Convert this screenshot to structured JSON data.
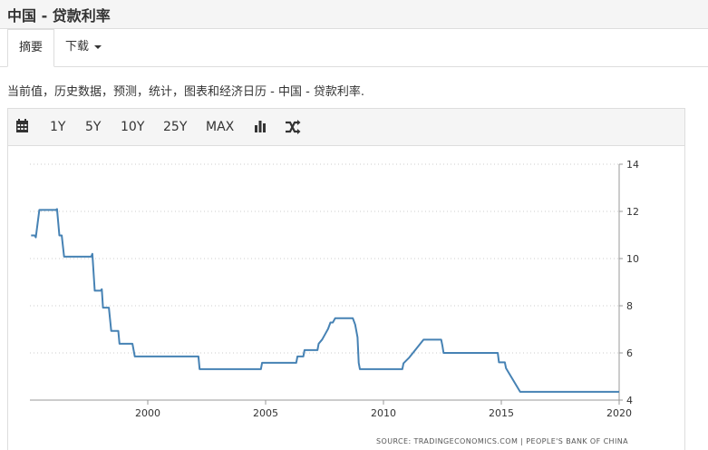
{
  "page": {
    "title": "中国 - 贷款利率"
  },
  "tabs": {
    "summary": "摘要",
    "download": "下载"
  },
  "description": "当前值，历史数据，预测，统计，图表和经济日历 - 中国 - 贷款利率.",
  "toolbar": {
    "calendar_icon": "calendar-icon",
    "ranges": [
      "1Y",
      "5Y",
      "10Y",
      "25Y",
      "MAX"
    ],
    "bar_chart_icon": "bar-chart-icon",
    "shuffle_icon": "shuffle-icon"
  },
  "colors": {
    "line": "#4682b4",
    "grid": "#cccccc",
    "toolbar_bg": "#f5f5f5"
  },
  "chart_data": {
    "type": "line",
    "x_axis": {
      "ticks": [
        "2000",
        "2005",
        "2010",
        "2015",
        "2020"
      ],
      "range": [
        1995.0,
        2020.0
      ]
    },
    "y_axis": {
      "ticks": [
        "4",
        "6",
        "8",
        "10",
        "12",
        "14"
      ],
      "range": [
        4,
        14
      ],
      "position": "right"
    },
    "grid": "horizontal-dotted",
    "source": "SOURCE: TRADINGECONOMICS.COM  |  PEOPLE'S BANK OF CHINA",
    "series": [
      {
        "points": [
          [
            1995.05,
            10.98
          ],
          [
            1995.2,
            10.98
          ],
          [
            1995.25,
            10.9
          ],
          [
            1995.4,
            12.06
          ],
          [
            1996.1,
            12.06
          ],
          [
            1996.15,
            12.1
          ],
          [
            1996.25,
            10.98
          ],
          [
            1996.35,
            10.98
          ],
          [
            1996.45,
            10.08
          ],
          [
            1997.6,
            10.08
          ],
          [
            1997.65,
            10.2
          ],
          [
            1997.75,
            8.64
          ],
          [
            1998.0,
            8.64
          ],
          [
            1998.05,
            8.7
          ],
          [
            1998.1,
            7.92
          ],
          [
            1998.35,
            7.92
          ],
          [
            1998.45,
            6.93
          ],
          [
            1998.75,
            6.93
          ],
          [
            1998.8,
            6.39
          ],
          [
            1999.35,
            6.39
          ],
          [
            1999.45,
            5.85
          ],
          [
            2002.15,
            5.85
          ],
          [
            2002.2,
            5.31
          ],
          [
            2004.8,
            5.31
          ],
          [
            2004.85,
            5.58
          ],
          [
            2006.3,
            5.58
          ],
          [
            2006.35,
            5.85
          ],
          [
            2006.6,
            5.85
          ],
          [
            2006.65,
            6.12
          ],
          [
            2007.2,
            6.12
          ],
          [
            2007.25,
            6.39
          ],
          [
            2007.4,
            6.57
          ],
          [
            2007.55,
            6.84
          ],
          [
            2007.65,
            7.02
          ],
          [
            2007.75,
            7.29
          ],
          [
            2007.85,
            7.29
          ],
          [
            2007.95,
            7.47
          ],
          [
            2008.7,
            7.47
          ],
          [
            2008.8,
            7.2
          ],
          [
            2008.85,
            6.93
          ],
          [
            2008.9,
            6.66
          ],
          [
            2008.95,
            5.58
          ],
          [
            2009.0,
            5.31
          ],
          [
            2010.8,
            5.31
          ],
          [
            2010.85,
            5.56
          ],
          [
            2011.1,
            5.81
          ],
          [
            2011.3,
            6.06
          ],
          [
            2011.5,
            6.31
          ],
          [
            2011.7,
            6.56
          ],
          [
            2012.45,
            6.56
          ],
          [
            2012.5,
            6.31
          ],
          [
            2012.55,
            6.0
          ],
          [
            2014.85,
            6.0
          ],
          [
            2014.9,
            5.6
          ],
          [
            2015.15,
            5.6
          ],
          [
            2015.2,
            5.35
          ],
          [
            2015.35,
            5.1
          ],
          [
            2015.5,
            4.85
          ],
          [
            2015.65,
            4.6
          ],
          [
            2015.8,
            4.35
          ],
          [
            2020.0,
            4.35
          ]
        ]
      }
    ]
  }
}
